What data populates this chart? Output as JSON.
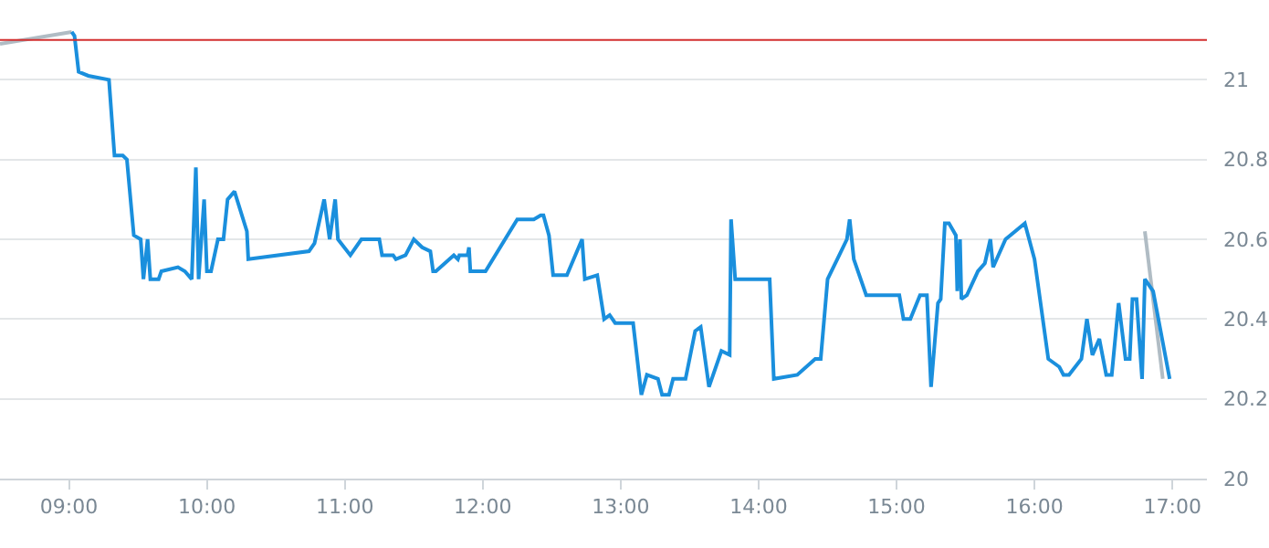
{
  "chart_data": {
    "type": "line",
    "grid": "y",
    "marker": "none",
    "line_style": "solid",
    "xlim": [
      8.5,
      17.25
    ],
    "ylim": [
      20,
      21.2
    ],
    "xticks": [
      {
        "value": 9,
        "label": "09:00"
      },
      {
        "value": 10,
        "label": "10:00"
      },
      {
        "value": 11,
        "label": "11:00"
      },
      {
        "value": 12,
        "label": "12:00"
      },
      {
        "value": 13,
        "label": "13:00"
      },
      {
        "value": 14,
        "label": "14:00"
      },
      {
        "value": 15,
        "label": "15:00"
      },
      {
        "value": 16,
        "label": "16:00"
      },
      {
        "value": 17,
        "label": "17:00"
      }
    ],
    "yticks": [
      20,
      20.2,
      20.4,
      20.6,
      20.8,
      21
    ],
    "ref_lines": [
      {
        "axis": "y",
        "value": 21.1,
        "color": "#d32f2f"
      }
    ],
    "series": [
      {
        "color": "#b0bcc4",
        "x": [
          8.5,
          9.02
        ],
        "values": [
          21.09,
          21.12
        ]
      },
      {
        "color": "#b0bcc4",
        "x": [
          16.8,
          16.93
        ],
        "values": [
          20.62,
          20.25
        ]
      },
      {
        "color": "#1a8fdd",
        "x": [
          9.02,
          9.04,
          9.07,
          9.14,
          9.29,
          9.33,
          9.39,
          9.42,
          9.47,
          9.52,
          9.54,
          9.57,
          9.59,
          9.65,
          9.67,
          9.79,
          9.84,
          9.89,
          9.92,
          9.94,
          9.98,
          10.0,
          10.03,
          10.08,
          10.12,
          10.15,
          10.2,
          10.29,
          10.3,
          10.74,
          10.78,
          10.85,
          10.89,
          10.93,
          10.95,
          11.04,
          11.12,
          11.25,
          11.27,
          11.35,
          11.37,
          11.44,
          11.5,
          11.56,
          11.62,
          11.64,
          11.66,
          11.79,
          11.82,
          11.83,
          11.89,
          11.9,
          11.91,
          11.96,
          12.02,
          12.25,
          12.37,
          12.42,
          12.44,
          12.48,
          12.51,
          12.57,
          12.61,
          12.72,
          12.74,
          12.83,
          12.88,
          12.92,
          12.96,
          13.09,
          13.15,
          13.19,
          13.27,
          13.3,
          13.35,
          13.38,
          13.47,
          13.54,
          13.58,
          13.64,
          13.73,
          13.79,
          13.8,
          13.83,
          14.08,
          14.11,
          14.28,
          14.41,
          14.45,
          14.5,
          14.57,
          14.64,
          14.66,
          14.69,
          14.78,
          15.02,
          15.05,
          15.1,
          15.17,
          15.22,
          15.25,
          15.3,
          15.32,
          15.35,
          15.38,
          15.43,
          15.44,
          15.46,
          15.47,
          15.51,
          15.59,
          15.64,
          15.68,
          15.7,
          15.79,
          15.93,
          16.0,
          16.1,
          16.18,
          16.21,
          16.25,
          16.34,
          16.38,
          16.42,
          16.47,
          16.52,
          16.56,
          16.61,
          16.66,
          16.69,
          16.71,
          16.74,
          16.78,
          16.8,
          16.86,
          16.98
        ],
        "values": [
          21.12,
          21.11,
          21.02,
          21.01,
          21.0,
          20.81,
          20.81,
          20.8,
          20.61,
          20.6,
          20.5,
          20.6,
          20.5,
          20.5,
          20.52,
          20.53,
          20.52,
          20.5,
          20.78,
          20.5,
          20.7,
          20.52,
          20.52,
          20.6,
          20.6,
          20.7,
          20.72,
          20.62,
          20.55,
          20.57,
          20.59,
          20.7,
          20.6,
          20.7,
          20.6,
          20.56,
          20.6,
          20.6,
          20.56,
          20.56,
          20.55,
          20.56,
          20.6,
          20.58,
          20.57,
          20.52,
          20.52,
          20.56,
          20.55,
          20.56,
          20.56,
          20.58,
          20.52,
          20.52,
          20.52,
          20.65,
          20.65,
          20.66,
          20.66,
          20.61,
          20.51,
          20.51,
          20.51,
          20.6,
          20.5,
          20.51,
          20.4,
          20.41,
          20.39,
          20.39,
          20.21,
          20.26,
          20.25,
          20.21,
          20.21,
          20.25,
          20.25,
          20.37,
          20.38,
          20.23,
          20.32,
          20.31,
          20.65,
          20.5,
          20.5,
          20.25,
          20.26,
          20.3,
          20.3,
          20.5,
          20.55,
          20.6,
          20.65,
          20.55,
          20.46,
          20.46,
          20.4,
          20.4,
          20.46,
          20.46,
          20.23,
          20.44,
          20.45,
          20.64,
          20.64,
          20.61,
          20.47,
          20.6,
          20.45,
          20.46,
          20.52,
          20.54,
          20.6,
          20.53,
          20.6,
          20.64,
          20.55,
          20.3,
          20.28,
          20.26,
          20.26,
          20.3,
          20.4,
          20.31,
          20.35,
          20.26,
          20.26,
          20.44,
          20.3,
          20.3,
          20.45,
          20.45,
          20.25,
          20.5,
          20.47,
          20.25
        ]
      }
    ]
  }
}
